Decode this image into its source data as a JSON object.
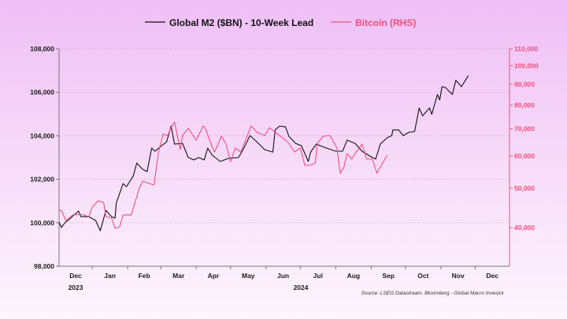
{
  "chart_data": {
    "type": "line",
    "legend": {
      "placement": "top",
      "items": [
        "Global M2 ($BN) - 10-Week Lead",
        "Bitcoin (RHS)"
      ]
    },
    "source": "Source: LSEG Datastream, Bloomberg - Global Macro Investor",
    "x_axis": {
      "type": "date",
      "xlim": [
        "2023-12-03",
        "2024-12-31"
      ],
      "month_labels": [
        "Dec",
        "Jan",
        "Feb",
        "Mar",
        "Apr",
        "May",
        "Jun",
        "Jul",
        "Aug",
        "Sep",
        "Oct",
        "Nov",
        "Dec"
      ],
      "year_labels": [
        "2023",
        "2024"
      ]
    },
    "y_axis_left": {
      "ylim": [
        98000,
        108000
      ],
      "ticks": [
        98000,
        100000,
        102000,
        104000,
        106000,
        108000
      ],
      "tick_labels": [
        "98,000",
        "100,000",
        "102,000",
        "104,000",
        "106,000",
        "108,000"
      ],
      "grid": true
    },
    "y_axis_right": {
      "scale": "log",
      "ylim": [
        32150,
        110000
      ],
      "ticks": [
        40000,
        50000,
        60000,
        70000,
        80000,
        90000,
        100000,
        110000
      ],
      "tick_labels": [
        "40,000",
        "50,000",
        "60,000",
        "70,000",
        "80,000",
        "90,000",
        "100,000",
        "110,000"
      ],
      "color": "#f0507c"
    },
    "series": [
      {
        "name": "Global M2 ($BN) - 10-Week Lead",
        "axis": "left",
        "color": "#111111",
        "points": [
          [
            "2023-12-03",
            100030
          ],
          [
            "2023-12-05",
            99780
          ],
          [
            "2023-12-08",
            99990
          ],
          [
            "2023-12-13",
            100210
          ],
          [
            "2023-12-20",
            100540
          ],
          [
            "2023-12-22",
            100280
          ],
          [
            "2023-12-29",
            100280
          ],
          [
            "2024-01-04",
            100100
          ],
          [
            "2024-01-08",
            99630
          ],
          [
            "2024-01-13",
            100570
          ],
          [
            "2024-01-18",
            100280
          ],
          [
            "2024-01-21",
            100210
          ],
          [
            "2024-01-22",
            100900
          ],
          [
            "2024-01-28",
            101800
          ],
          [
            "2024-01-31",
            101660
          ],
          [
            "2024-02-06",
            102170
          ],
          [
            "2024-02-09",
            102750
          ],
          [
            "2024-02-14",
            102460
          ],
          [
            "2024-02-18",
            102350
          ],
          [
            "2024-02-22",
            103440
          ],
          [
            "2024-02-25",
            103290
          ],
          [
            "2024-02-29",
            103470
          ],
          [
            "2024-03-06",
            103720
          ],
          [
            "2024-03-10",
            104450
          ],
          [
            "2024-03-13",
            103620
          ],
          [
            "2024-03-20",
            103650
          ],
          [
            "2024-03-25",
            103000
          ],
          [
            "2024-03-30",
            102890
          ],
          [
            "2024-04-03",
            103000
          ],
          [
            "2024-04-08",
            102890
          ],
          [
            "2024-04-11",
            103430
          ],
          [
            "2024-04-15",
            103110
          ],
          [
            "2024-04-22",
            102820
          ],
          [
            "2024-04-29",
            102960
          ],
          [
            "2024-05-08",
            103000
          ],
          [
            "2024-05-13",
            103470
          ],
          [
            "2024-05-18",
            104010
          ],
          [
            "2024-05-24",
            103720
          ],
          [
            "2024-05-31",
            103360
          ],
          [
            "2024-06-07",
            103250
          ],
          [
            "2024-06-09",
            104270
          ],
          [
            "2024-06-13",
            104450
          ],
          [
            "2024-06-18",
            104410
          ],
          [
            "2024-06-21",
            103980
          ],
          [
            "2024-06-27",
            103650
          ],
          [
            "2024-07-02",
            103540
          ],
          [
            "2024-07-08",
            102820
          ],
          [
            "2024-07-10",
            103250
          ],
          [
            "2024-07-15",
            103620
          ],
          [
            "2024-07-22",
            103470
          ],
          [
            "2024-08-01",
            103290
          ],
          [
            "2024-08-07",
            103290
          ],
          [
            "2024-08-11",
            103800
          ],
          [
            "2024-08-18",
            103650
          ],
          [
            "2024-08-24",
            103290
          ],
          [
            "2024-09-02",
            103000
          ],
          [
            "2024-09-05",
            102930
          ],
          [
            "2024-09-09",
            103620
          ],
          [
            "2024-09-15",
            103910
          ],
          [
            "2024-09-19",
            104010
          ],
          [
            "2024-09-20",
            104270
          ],
          [
            "2024-09-25",
            104270
          ],
          [
            "2024-09-29",
            104010
          ],
          [
            "2024-10-04",
            104160
          ],
          [
            "2024-10-09",
            104200
          ],
          [
            "2024-10-13",
            105280
          ],
          [
            "2024-10-16",
            104920
          ],
          [
            "2024-10-22",
            105280
          ],
          [
            "2024-10-24",
            104990
          ],
          [
            "2024-10-29",
            105900
          ],
          [
            "2024-10-31",
            105650
          ],
          [
            "2024-11-02",
            106260
          ],
          [
            "2024-11-05",
            106220
          ],
          [
            "2024-11-11",
            105900
          ],
          [
            "2024-11-14",
            106550
          ],
          [
            "2024-11-19",
            106260
          ],
          [
            "2024-11-25",
            106770
          ]
        ]
      },
      {
        "name": "Bitcoin (RHS)",
        "axis": "right",
        "color": "#f0507c",
        "points": [
          [
            "2023-12-03",
            43920
          ],
          [
            "2023-12-05",
            44120
          ],
          [
            "2023-12-09",
            41630
          ],
          [
            "2023-12-15",
            42970
          ],
          [
            "2023-12-22",
            43150
          ],
          [
            "2023-12-29",
            42580
          ],
          [
            "2024-01-01",
            44910
          ],
          [
            "2024-01-06",
            46540
          ],
          [
            "2024-01-11",
            46130
          ],
          [
            "2024-01-13",
            42580
          ],
          [
            "2024-01-18",
            42200
          ],
          [
            "2024-01-21",
            39820
          ],
          [
            "2024-01-25",
            40180
          ],
          [
            "2024-01-28",
            42970
          ],
          [
            "2024-02-04",
            42970
          ],
          [
            "2024-02-11",
            49760
          ],
          [
            "2024-02-14",
            52030
          ],
          [
            "2024-02-24",
            50890
          ],
          [
            "2024-02-28",
            61360
          ],
          [
            "2024-03-03",
            67980
          ],
          [
            "2024-03-07",
            67380
          ],
          [
            "2024-03-10",
            70440
          ],
          [
            "2024-03-13",
            72690
          ],
          [
            "2024-03-18",
            62180
          ],
          [
            "2024-03-20",
            67380
          ],
          [
            "2024-03-24",
            69510
          ],
          [
            "2024-03-25",
            70140
          ],
          [
            "2024-04-01",
            65600
          ],
          [
            "2024-04-07",
            71070
          ],
          [
            "2024-04-09",
            70140
          ],
          [
            "2024-04-14",
            64150
          ],
          [
            "2024-04-17",
            61360
          ],
          [
            "2024-04-23",
            67080
          ],
          [
            "2024-04-27",
            64150
          ],
          [
            "2024-05-01",
            58150
          ],
          [
            "2024-05-05",
            62740
          ],
          [
            "2024-05-10",
            61360
          ],
          [
            "2024-05-19",
            71070
          ],
          [
            "2024-05-24",
            68580
          ],
          [
            "2024-05-31",
            67380
          ],
          [
            "2024-06-04",
            70440
          ],
          [
            "2024-06-09",
            68580
          ],
          [
            "2024-06-14",
            67080
          ],
          [
            "2024-06-21",
            64430
          ],
          [
            "2024-06-26",
            61360
          ],
          [
            "2024-07-01",
            62740
          ],
          [
            "2024-07-05",
            56880
          ],
          [
            "2024-07-09",
            56880
          ],
          [
            "2024-07-14",
            57640
          ],
          [
            "2024-07-16",
            64430
          ],
          [
            "2024-07-21",
            67080
          ],
          [
            "2024-07-27",
            67380
          ],
          [
            "2024-07-30",
            65020
          ],
          [
            "2024-08-02",
            62740
          ],
          [
            "2024-08-05",
            54410
          ],
          [
            "2024-08-08",
            56120
          ],
          [
            "2024-08-11",
            60820
          ],
          [
            "2024-08-15",
            58950
          ],
          [
            "2024-08-18",
            60820
          ],
          [
            "2024-08-24",
            64150
          ],
          [
            "2024-08-28",
            58950
          ],
          [
            "2024-09-02",
            58950
          ],
          [
            "2024-09-06",
            54410
          ],
          [
            "2024-09-11",
            57640
          ],
          [
            "2024-09-15",
            60270
          ]
        ]
      }
    ]
  }
}
